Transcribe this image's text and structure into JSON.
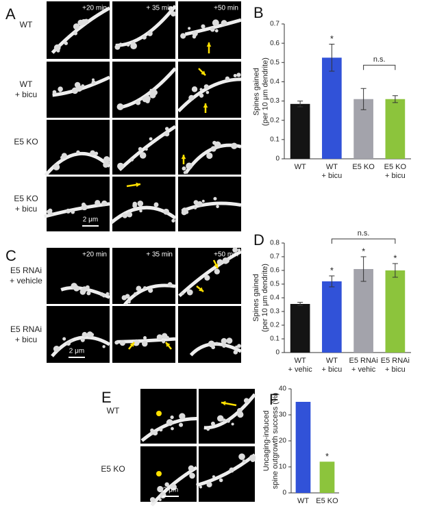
{
  "panel_labels": [
    "A",
    "B",
    "C",
    "D",
    "E",
    "F"
  ],
  "panel_a": {
    "time_labels": [
      "+20 min",
      "+ 35 min",
      "+50 min"
    ],
    "row_labels": [
      "WT",
      "WT\n+ bicu",
      "E5 KO",
      "E5 KO\n+ bicu"
    ],
    "scale_bar": "2 μm"
  },
  "panel_c": {
    "time_labels": [
      "+20 min",
      "+ 35 min",
      "+50 min"
    ],
    "row_labels": [
      "E5 RNAi\n+ vehicle",
      "E5 RNAi\n+ bicu"
    ],
    "scale_bar": "2 μm"
  },
  "panel_e": {
    "row_labels": [
      "WT",
      "E5 KO"
    ],
    "scale_bar": "2 μm"
  },
  "chart_data": [
    {
      "type": "bar",
      "y_label": "Spines gained\n(per 10 μm dendrite)",
      "categories": [
        "WT",
        "WT\n+ bicu",
        "E5 KO",
        "E5 KO\n+ bicu"
      ],
      "values": [
        0.285,
        0.525,
        0.31,
        0.31
      ],
      "errors": [
        0.015,
        0.07,
        0.055,
        0.018
      ],
      "colors": [
        "#141414",
        "#3152d8",
        "#a3a3ab",
        "#8cc43c"
      ],
      "ylim": [
        0,
        0.7
      ],
      "yticks": [
        0,
        0.1,
        0.2,
        0.3,
        0.4,
        0.5,
        0.6,
        0.7
      ],
      "annotations": [
        "*",
        "n.s."
      ]
    },
    {
      "type": "bar",
      "y_label": "Spines gained\n(per 10 μm dendrite)",
      "categories": [
        "WT\n+ vehic",
        "WT\n+ bicu",
        "E5 RNAi\n+ vehic",
        "E5 RNAi\n+ bicu"
      ],
      "values": [
        0.355,
        0.52,
        0.61,
        0.6
      ],
      "errors": [
        0.012,
        0.04,
        0.09,
        0.05
      ],
      "colors": [
        "#141414",
        "#3152d8",
        "#a3a3ab",
        "#8cc43c"
      ],
      "ylim": [
        0,
        0.8
      ],
      "yticks": [
        0,
        0.1,
        0.2,
        0.3,
        0.4,
        0.5,
        0.6,
        0.7,
        0.8
      ],
      "annotations": [
        "n.s.",
        "*",
        "*",
        "*"
      ]
    },
    {
      "type": "bar",
      "y_label": "Uncaging-induced\nspine outgrowth success (%)",
      "categories": [
        "WT",
        "E5 KO"
      ],
      "values": [
        35,
        12
      ],
      "colors": [
        "#3152d8",
        "#8cc43c"
      ],
      "ylim": [
        0,
        40
      ],
      "yticks": [
        0,
        10,
        20,
        30,
        40
      ],
      "annotations": [
        "*"
      ]
    }
  ]
}
